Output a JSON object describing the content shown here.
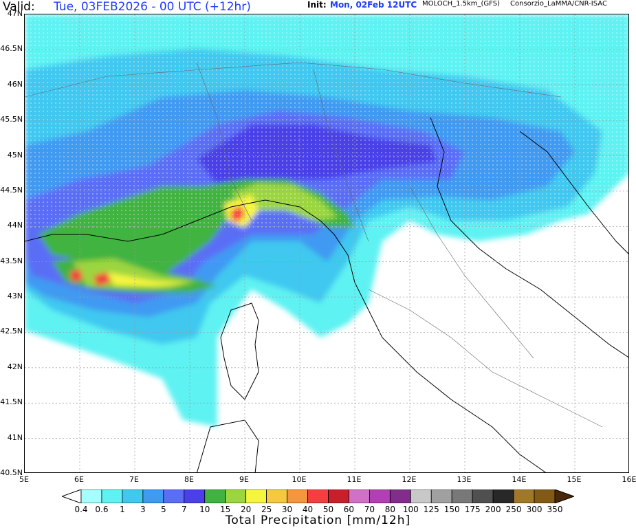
{
  "header": {
    "valid_label": "Valid:",
    "valid_value": "Tue, 03FEB2026 - 00 UTC (+12hr)",
    "init_label": "Init:",
    "init_value": "Mon, 02Feb 12UTC",
    "model": "MOLOCH_1.5km_(GFS)",
    "consortium": "Consorzio_LaMMA/CNR-ISAC"
  },
  "map": {
    "lat_labels": [
      "47N",
      "46.5N",
      "46N",
      "45.5N",
      "45N",
      "44.5N",
      "44N",
      "43.5N",
      "43N",
      "42.5N",
      "42N",
      "41.5N",
      "41N",
      "40.5N"
    ],
    "lon_labels": [
      "5E",
      "6E",
      "7E",
      "8E",
      "9E",
      "10E",
      "11E",
      "12E",
      "13E",
      "14E",
      "15E",
      "16E"
    ],
    "lat_range": [
      40.5,
      47
    ],
    "lon_range": [
      5,
      16
    ]
  },
  "legend": {
    "title": "Total Precipitation [mm/12h]",
    "labels": [
      "0.4",
      "0.6",
      "1",
      "3",
      "5",
      "7",
      "10",
      "15",
      "20",
      "25",
      "30",
      "40",
      "50",
      "60",
      "70",
      "80",
      "100",
      "125",
      "150",
      "175",
      "200",
      "250",
      "300",
      "350"
    ],
    "colors": [
      "#a6ffff",
      "#5ff2f2",
      "#3fc8f0",
      "#3f9af2",
      "#5a6ef5",
      "#4a3fe8",
      "#3fb33f",
      "#9bd63f",
      "#f5f53f",
      "#f5c83f",
      "#f5963f",
      "#f53f3f",
      "#c8202a",
      "#d270c8",
      "#b43fb4",
      "#822d8c",
      "#c8c8c8",
      "#a0a0a0",
      "#787878",
      "#505050",
      "#282828",
      "#a07828",
      "#825a14",
      "#6e3c14",
      "#4a2808"
    ]
  }
}
